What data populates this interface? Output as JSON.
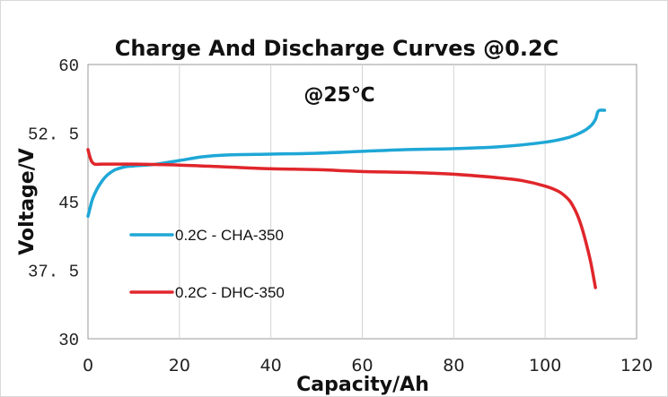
{
  "chart_data": {
    "type": "line",
    "title": "Charge And Discharge Curves @0.2C",
    "subtitle": "@25℃",
    "xlabel": "Capacity/Ah",
    "ylabel": "Voltage/V",
    "xlim": [
      0,
      120
    ],
    "ylim": [
      30,
      60
    ],
    "x_ticks": [
      "0",
      "20",
      "40",
      "60",
      "80",
      "100",
      "120"
    ],
    "y_ticks": [
      "30",
      "37. 5",
      "45",
      "52. 5",
      "60"
    ],
    "grid": "vertical",
    "legend_position": "left",
    "series": [
      {
        "name": "0.2C - CHA-350",
        "color": "#1ea7d6",
        "x": [
          0,
          0.5,
          1,
          2,
          3,
          4,
          5,
          6,
          8,
          10,
          15,
          20,
          25,
          30,
          40,
          50,
          60,
          70,
          80,
          90,
          100,
          105,
          108,
          110,
          111,
          111.5,
          112,
          113
        ],
        "y": [
          43.4,
          44.4,
          45.3,
          46.4,
          47.2,
          47.8,
          48.2,
          48.5,
          48.8,
          48.9,
          49.1,
          49.5,
          49.9,
          50.1,
          50.2,
          50.3,
          50.5,
          50.7,
          50.8,
          51.0,
          51.5,
          52.0,
          52.6,
          53.3,
          54.0,
          54.8,
          55.0,
          55.0
        ]
      },
      {
        "name": "0.2C - DHC-350",
        "color": "#e0262b",
        "x": [
          0,
          0.3,
          0.8,
          1.5,
          3,
          5,
          10,
          20,
          30,
          40,
          50,
          60,
          70,
          80,
          90,
          95,
          100,
          103,
          105,
          106,
          107,
          108,
          109,
          110,
          111
        ],
        "y": [
          50.7,
          50.1,
          49.4,
          49.1,
          49.1,
          49.1,
          49.1,
          49.0,
          48.8,
          48.6,
          48.5,
          48.3,
          48.2,
          48.0,
          47.6,
          47.3,
          46.7,
          46.1,
          45.3,
          44.6,
          43.6,
          42.2,
          40.4,
          38.3,
          35.6
        ]
      }
    ]
  }
}
